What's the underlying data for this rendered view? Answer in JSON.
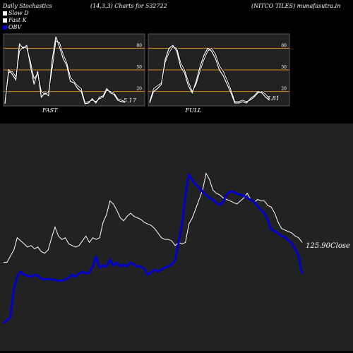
{
  "header": {
    "left": "Daily Stochastics",
    "middle": "(14,3,3) Charts for 532722",
    "right": "(NITCO TILES) munafasutra.in"
  },
  "legend": [
    {
      "label": "Slow  D",
      "color": "#ffffff"
    },
    {
      "label": "Fast K",
      "color": "#ffffff"
    },
    {
      "label": "OBV",
      "color": "#0000ff"
    }
  ],
  "colors": {
    "panel_bg": "#222222",
    "band_line": "#d88a1a",
    "stoch_line": "#ffffff",
    "price_line": "#ffffff",
    "obv_line": "#0000cc"
  },
  "chart_data": [
    {
      "type": "line",
      "panel": "FAST",
      "title": "FAST",
      "ylim": [
        0,
        100
      ],
      "ticks": [
        20,
        50,
        80
      ],
      "last_value_label": "5.17",
      "series": [
        {
          "name": "Slow  D",
          "values": [
            6,
            46,
            48,
            40,
            76,
            82,
            80,
            62,
            38,
            45,
            20,
            16,
            20,
            52,
            90,
            88,
            72,
            60,
            40,
            34,
            28,
            24,
            5,
            6,
            8,
            6,
            10,
            12,
            22,
            20,
            18,
            10,
            8,
            6
          ]
        },
        {
          "name": "Fast K",
          "values": [
            3,
            50,
            44,
            36,
            86,
            80,
            84,
            56,
            30,
            48,
            12,
            18,
            14,
            64,
            96,
            82,
            66,
            56,
            34,
            32,
            24,
            20,
            3,
            4,
            10,
            4,
            12,
            14,
            24,
            18,
            16,
            8,
            6,
            5
          ]
        }
      ]
    },
    {
      "type": "line",
      "panel": "FULL",
      "title": "FULL",
      "ylim": [
        0,
        100
      ],
      "ticks": [
        20,
        50,
        80
      ],
      "last_value_label": "7.81",
      "series": [
        {
          "name": "Slow  D",
          "values": [
            6,
            24,
            28,
            32,
            60,
            74,
            82,
            80,
            60,
            50,
            34,
            20,
            30,
            48,
            64,
            76,
            80,
            72,
            56,
            48,
            36,
            22,
            6,
            6,
            8,
            6,
            8,
            12,
            18,
            20,
            16,
            10
          ]
        },
        {
          "name": "Fast K",
          "values": [
            4,
            20,
            24,
            30,
            64,
            80,
            84,
            76,
            54,
            46,
            28,
            18,
            34,
            54,
            70,
            80,
            76,
            66,
            50,
            42,
            30,
            18,
            4,
            4,
            6,
            4,
            10,
            14,
            20,
            18,
            12,
            8
          ]
        }
      ]
    },
    {
      "type": "line",
      "panel": "price",
      "last_value_label": "125.90Close",
      "series": [
        {
          "name": "Close",
          "values": [
            113.7,
            113.7,
            117.5,
            121.3,
            128.8,
            126.9,
            125.0,
            123.1,
            124.0,
            122.1,
            123.1,
            120.2,
            119.3,
            121.3,
            128.8,
            135.4,
            129.8,
            127.8,
            128.8,
            125.0,
            124.0,
            123.1,
            124.0,
            126.9,
            129.8,
            125.9,
            128.8,
            127.8,
            128.8,
            138.3,
            143.0,
            151.5,
            149.6,
            145.8,
            141.1,
            139.2,
            142.0,
            143.9,
            142.0,
            141.1,
            140.1,
            138.3,
            137.3,
            136.4,
            134.5,
            131.7,
            128.8,
            127.8,
            127.8,
            126.9,
            124.0,
            125.9,
            125.0,
            125.9,
            137.3,
            141.1,
            146.7,
            152.4,
            158.1,
            168.5,
            164.7,
            158.1,
            156.2,
            155.2,
            153.3,
            152.4,
            151.5,
            150.5,
            149.6,
            151.5,
            153.3,
            156.2,
            152.4,
            150.5,
            152.4,
            151.5,
            151.5,
            148.6,
            147.7,
            143.9,
            138.3,
            134.5,
            133.5,
            132.6,
            131.7,
            129.8,
            128.8,
            125.9
          ]
        },
        {
          "name": "OBV",
          "values": [
            28,
            31,
            34,
            61,
            74,
            79,
            76,
            75,
            74,
            76,
            75,
            72,
            71,
            72,
            71,
            71,
            70,
            70,
            71,
            73,
            76,
            74,
            77,
            79,
            77,
            78,
            84,
            94,
            83,
            85,
            84,
            91,
            85,
            88,
            84,
            86,
            84,
            88,
            86,
            84,
            84,
            82,
            76,
            78,
            81,
            79,
            81,
            83,
            84,
            86,
            90,
            108,
            125,
            154,
            175,
            170,
            165,
            162,
            158,
            155,
            152,
            150,
            147,
            145,
            148,
            155,
            158,
            158,
            156,
            155,
            154,
            152,
            150,
            148,
            144,
            140,
            137,
            130,
            121,
            119,
            117,
            114,
            113,
            110,
            107,
            101,
            94,
            77
          ]
        }
      ]
    }
  ]
}
